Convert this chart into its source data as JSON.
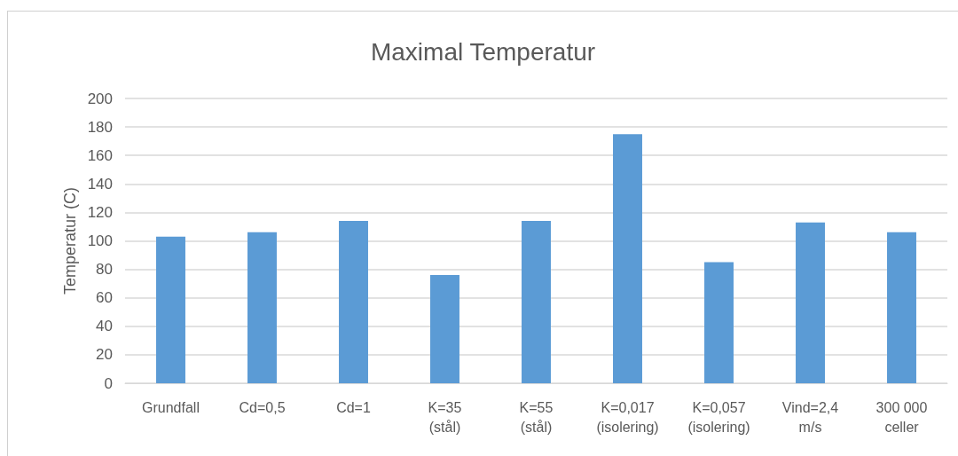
{
  "chart_data": {
    "type": "bar",
    "title": "Maximal Temperatur",
    "ylabel": "Temperatur (C)",
    "categories": [
      "Grundfall",
      "Cd=0,5",
      "Cd=1",
      "K=35\n(stål)",
      "K=55\n(stål)",
      "K=0,017\n(isolering)",
      "K=0,057\n(isolering)",
      "Vind=2,4\nm/s",
      "300 000\nceller"
    ],
    "values": [
      103,
      106,
      114,
      76,
      114,
      175,
      85,
      113,
      106
    ],
    "color": "#5b9bd5",
    "ylim": [
      0,
      200
    ],
    "yticks": [
      0,
      20,
      40,
      60,
      80,
      100,
      120,
      140,
      160,
      180,
      200
    ],
    "grid": "y"
  }
}
